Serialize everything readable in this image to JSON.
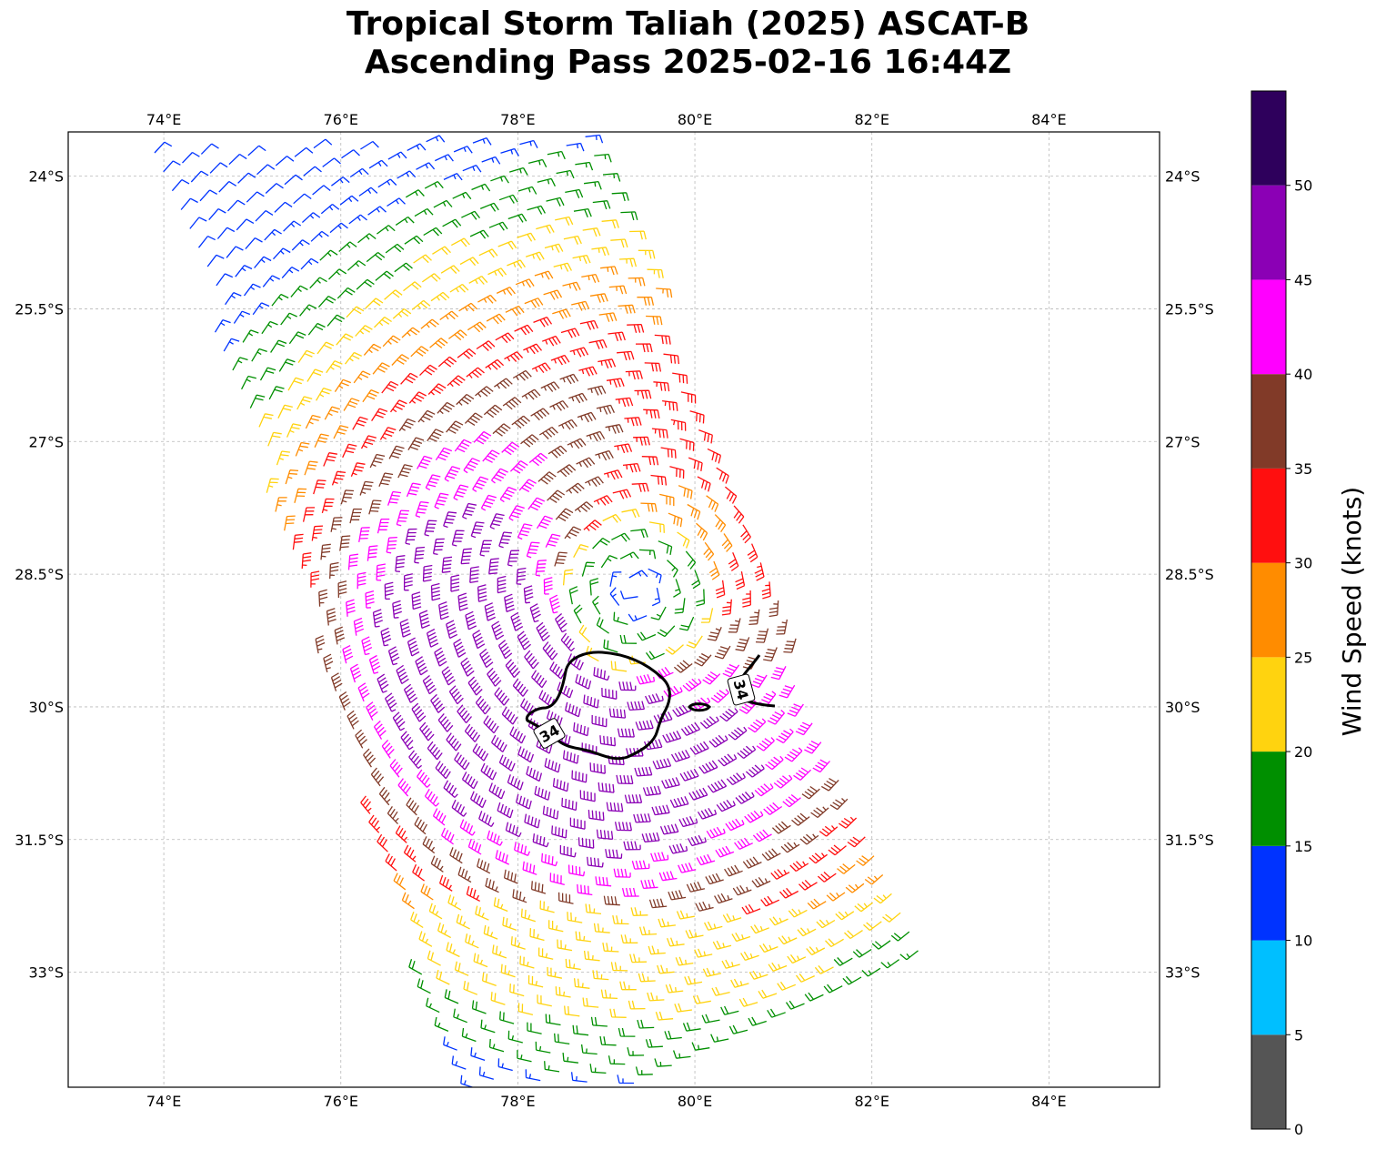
{
  "title": {
    "line1": "Tropical Storm Taliah (2025) ASCAT-B",
    "line2": "Ascending Pass 2025-02-16 16:44Z"
  },
  "map": {
    "lon_range": [
      72.92,
      85.25
    ],
    "lat_range": [
      -34.3,
      -23.5
    ],
    "lon_ticks": [
      "74°E",
      "76°E",
      "78°E",
      "80°E",
      "82°E",
      "84°E"
    ],
    "lon_tick_values": [
      74,
      76,
      78,
      80,
      82,
      84
    ],
    "lat_ticks": [
      "24°S",
      "25.5°S",
      "27°S",
      "28.5°S",
      "30°S",
      "31.5°S",
      "33°S"
    ],
    "lat_tick_values": [
      -24,
      -25.5,
      -27,
      -28.5,
      -30,
      -31.5,
      -33
    ],
    "gridlines": true,
    "storm_center": [
      79.35,
      -28.7
    ],
    "contour_label": "34"
  },
  "colorbar": {
    "label": "Wind Speed (knots)",
    "ticks": [
      "0",
      "5",
      "10",
      "15",
      "20",
      "25",
      "30",
      "35",
      "40",
      "45",
      "50"
    ],
    "tick_values": [
      0,
      5,
      10,
      15,
      20,
      25,
      30,
      35,
      40,
      45,
      50
    ],
    "max": 55,
    "colors": [
      "#555555",
      "#00bfff",
      "#0033ff",
      "#008f00",
      "#ffd30f",
      "#ff8c00",
      "#ff0f0f",
      "#813a28",
      "#ff00ff",
      "#8b00b5",
      "#2e005c"
    ]
  }
}
